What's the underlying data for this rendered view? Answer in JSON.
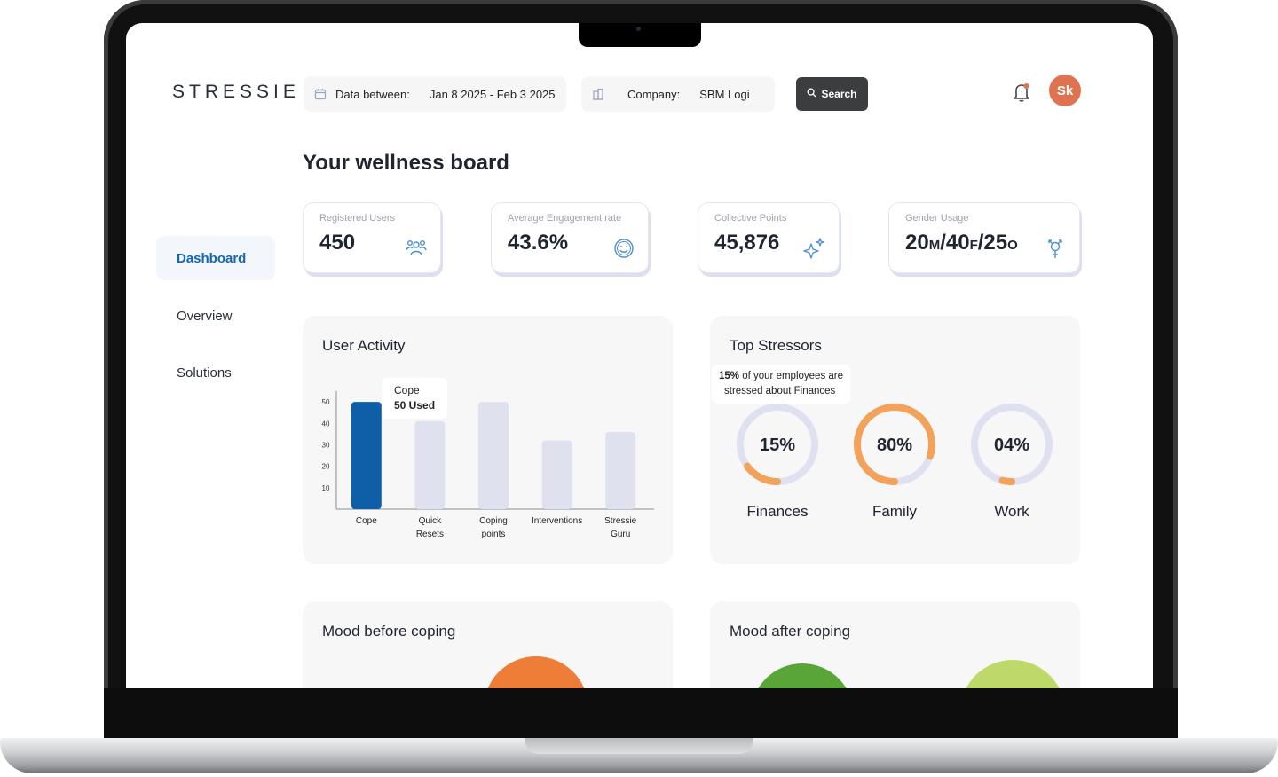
{
  "app": {
    "logo": "STRESSIE"
  },
  "filters": {
    "date_label": "Data between:",
    "date_value": "Jan 8 2025 - Feb 3 2025",
    "company_label": "Company:",
    "company_value": "SBM Logi",
    "search_label": "Search"
  },
  "user": {
    "initials": "Sk",
    "avatar_color": "#e0734f"
  },
  "sidebar": {
    "items": [
      {
        "label": "Dashboard",
        "active": true
      },
      {
        "label": "Overview",
        "active": false
      },
      {
        "label": "Solutions",
        "active": false
      }
    ]
  },
  "page": {
    "title": "Your wellness board"
  },
  "stats": [
    {
      "label": "Registered Users",
      "value": "450",
      "icon": "users-icon"
    },
    {
      "label": "Average Engagement rate",
      "value": "43.6%",
      "icon": "smile-icon"
    },
    {
      "label": "Collective Points",
      "value": "45,876",
      "icon": "sparkles-icon"
    },
    {
      "label": "Gender Usage",
      "value_parts": [
        "20",
        "M",
        "/40",
        "F",
        "/25",
        "O"
      ],
      "icon": "gender-icon"
    }
  ],
  "user_activity": {
    "title": "User Activity",
    "tooltip": {
      "title": "Cope",
      "value": "50 Used"
    },
    "chart_data": {
      "type": "bar",
      "categories": [
        "Cope",
        "Quick Resets",
        "Coping points",
        "Interventions",
        "Stressie Guru"
      ],
      "values": [
        50,
        41,
        50,
        32,
        36
      ],
      "highlight_index": 0,
      "yticks": [
        10,
        20,
        30,
        40,
        50
      ],
      "ylim": [
        0,
        55
      ],
      "grid": false,
      "colors": {
        "highlight": "#0f5fa8",
        "default": "#dfe2ee"
      }
    }
  },
  "top_stressors": {
    "title": "Top Stressors",
    "tooltip_bold": "15%",
    "tooltip_rest": " of your employees are",
    "tooltip_line2": "stressed about Finances",
    "items": [
      {
        "label": "Finances",
        "percent_text": "15%",
        "value": 0.15,
        "color": "#f2a25a",
        "track": "#dfe0f0"
      },
      {
        "label": "Family",
        "percent_text": "80%",
        "value": 0.8,
        "color": "#f2a25a",
        "track": "#dfe0f0"
      },
      {
        "label": "Work",
        "percent_text": "04%",
        "value": 0.04,
        "color": "#f2a25a",
        "track": "#dfe0f0"
      }
    ]
  },
  "mood_before": {
    "title": "Mood before coping",
    "colors": [
      "#ee7d37"
    ]
  },
  "mood_after": {
    "title": "Mood after coping",
    "colors": [
      "#5aa538",
      "#bcd96a"
    ]
  }
}
